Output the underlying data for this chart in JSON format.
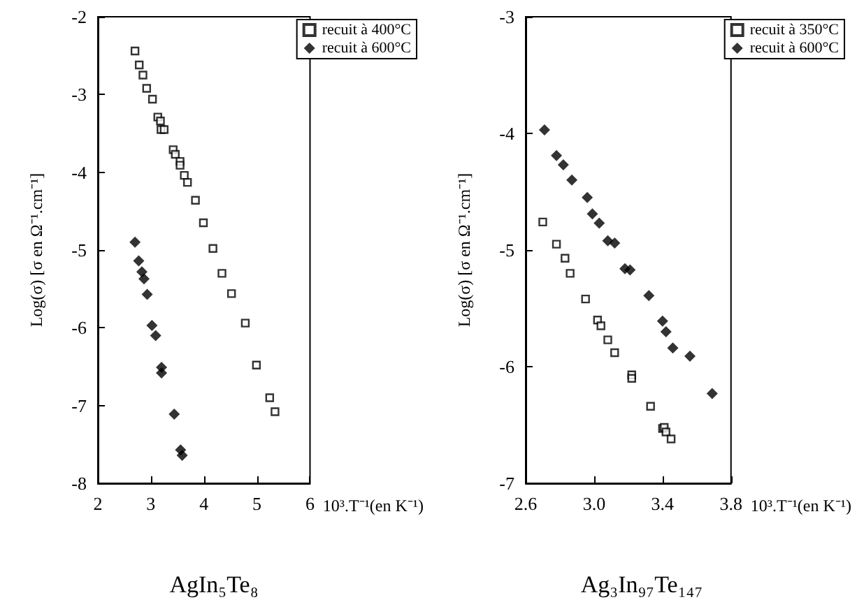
{
  "chart_data": [
    {
      "type": "scatter",
      "title": "AgIn₅Te₈",
      "xlabel": "10³.T⁻¹(en K⁻¹)",
      "ylabel": "Log(σ) [σ en Ω⁻¹.cm⁻¹]",
      "xlim": [
        2,
        6
      ],
      "xticks": [
        2,
        3,
        4,
        5,
        6
      ],
      "ylim": [
        -8,
        -2
      ],
      "yticks": [
        -8,
        -7,
        -6,
        -5,
        -4,
        -3,
        -2
      ],
      "grid": false,
      "legend": "top right",
      "series": [
        {
          "name": "recuit à 400°C",
          "color": "#000000",
          "marker": "square",
          "x": [
            2.7,
            2.78,
            2.85,
            2.92,
            3.03,
            3.13,
            3.18,
            3.19,
            3.25,
            3.42,
            3.46,
            3.55,
            3.55,
            3.63,
            3.69,
            3.84,
            3.99,
            4.17,
            4.34,
            4.52,
            4.78,
            4.99,
            5.24,
            5.34
          ],
          "values": [
            -2.44,
            -2.62,
            -2.75,
            -2.92,
            -3.06,
            -3.29,
            -3.34,
            -3.45,
            -3.45,
            -3.71,
            -3.77,
            -3.86,
            -3.91,
            -4.04,
            -4.13,
            -4.36,
            -4.65,
            -4.98,
            -5.3,
            -5.56,
            -5.94,
            -6.48,
            -6.9,
            -7.08
          ]
        },
        {
          "name": "recuit à 600°C",
          "color": "#000000",
          "marker": "diamond",
          "x": [
            2.7,
            2.77,
            2.83,
            2.87,
            2.93,
            3.02,
            3.09,
            3.2,
            3.2,
            3.44,
            3.56,
            3.59
          ],
          "values": [
            -4.9,
            -5.14,
            -5.28,
            -5.37,
            -5.57,
            -5.97,
            -6.1,
            -6.51,
            -6.58,
            -7.11,
            -7.57,
            -7.64
          ]
        }
      ]
    },
    {
      "type": "scatter",
      "title": "Ag₃In₉₇Te₁₄₇",
      "xlabel": "10³.T⁻¹(en K⁻¹)",
      "ylabel": "Log(σ) [σ en Ω⁻¹.cm⁻¹]",
      "xlim": [
        2.6,
        3.8
      ],
      "xticks": [
        2.6,
        {
          "value": 3,
          "label": "3.0"
        },
        3.4,
        3.8
      ],
      "ylim": [
        -7,
        -3
      ],
      "yticks": [
        -7,
        -6,
        -5,
        -4,
        -3
      ],
      "grid": false,
      "legend": "top right",
      "series": [
        {
          "name": "recuit à 350°C",
          "color": "#000000",
          "marker": "square",
          "x": [
            2.7,
            2.78,
            2.83,
            2.86,
            2.95,
            3.02,
            3.04,
            3.08,
            3.12,
            3.22,
            3.22,
            3.33,
            3.4,
            3.41,
            3.42,
            3.45
          ],
          "values": [
            -4.76,
            -4.95,
            -5.07,
            -5.2,
            -5.42,
            -5.6,
            -5.65,
            -5.77,
            -5.88,
            -6.07,
            -6.1,
            -6.34,
            -6.53,
            -6.52,
            -6.56,
            -6.62
          ]
        },
        {
          "name": "recuit à 600°C",
          "color": "#000000",
          "marker": "diamond",
          "x": [
            2.71,
            2.78,
            2.82,
            2.87,
            2.96,
            2.99,
            3.03,
            3.08,
            3.12,
            3.18,
            3.21,
            3.32,
            3.4,
            3.42,
            3.46,
            3.56,
            3.69
          ],
          "values": [
            -3.97,
            -4.19,
            -4.27,
            -4.4,
            -4.55,
            -4.69,
            -4.77,
            -4.92,
            -4.94,
            -5.16,
            -5.17,
            -5.39,
            -5.61,
            -5.7,
            -5.84,
            -5.91,
            -6.23
          ]
        }
      ]
    }
  ]
}
